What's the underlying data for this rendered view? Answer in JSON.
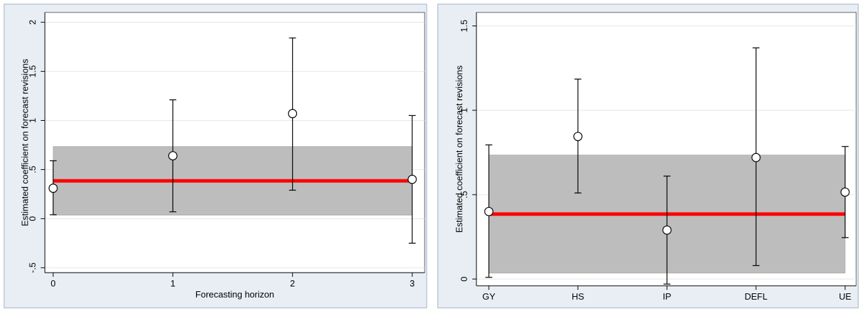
{
  "colors": {
    "frame_bg": "#e8eef4",
    "frame_border": "#9fb1c4",
    "plot_bg": "#ffffff",
    "grid": "#e6e6e6",
    "band": "#bdbdbd",
    "band_edge": "#a0a0a0",
    "mean_line": "#ff0000",
    "whisker": "#000000",
    "marker_fill": "#ffffff",
    "marker_stroke": "#000000"
  },
  "chart_data": [
    {
      "type": "scatter",
      "ylabel": "Estimated coefficient on forecast revisions",
      "xlabel": "Forecasting horizon",
      "x": [
        0,
        1,
        2,
        3
      ],
      "x_tick_labels": [
        "0",
        "1",
        "2",
        "3"
      ],
      "y": [
        0.31,
        0.64,
        1.07,
        0.4
      ],
      "ci_low": [
        0.04,
        0.07,
        0.29,
        -0.25
      ],
      "ci_high": [
        0.59,
        1.21,
        1.84,
        1.05
      ],
      "ylim": [
        -0.55,
        2.1
      ],
      "xlim": [
        0,
        3
      ],
      "y_ticks": [
        -0.5,
        0,
        0.5,
        1,
        1.5,
        2
      ],
      "y_tick_labels": [
        "-.5",
        "0",
        ".5",
        "1",
        "1.5",
        "2"
      ],
      "mean_line": 0.385,
      "band": [
        0.035,
        0.735
      ],
      "grid": true
    },
    {
      "type": "scatter",
      "ylabel": "Estimated coefficient on forecast revisions",
      "xlabel": "",
      "x": [
        0,
        1,
        2,
        3,
        4
      ],
      "x_tick_labels": [
        "GY",
        "HS",
        "IP",
        "DEFL",
        "UE"
      ],
      "y": [
        0.4,
        0.845,
        0.29,
        0.72,
        0.515
      ],
      "ci_low": [
        0.01,
        0.51,
        -0.03,
        0.08,
        0.245
      ],
      "ci_high": [
        0.795,
        1.185,
        0.61,
        1.37,
        0.785
      ],
      "ylim": [
        -0.04,
        1.58
      ],
      "xlim": [
        0,
        4
      ],
      "y_ticks": [
        0,
        0.5,
        1,
        1.5
      ],
      "y_tick_labels": [
        "0",
        ".5",
        "1",
        "1.5"
      ],
      "mean_line": 0.385,
      "band": [
        0.035,
        0.735
      ],
      "grid": true
    }
  ]
}
